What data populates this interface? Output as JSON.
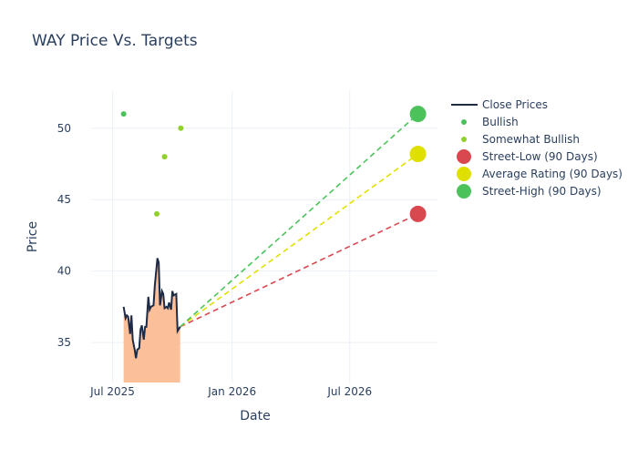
{
  "chart_data": {
    "type": "line",
    "title": "WAY Price Vs. Targets",
    "xlabel": "Date",
    "ylabel": "Price",
    "xlim": [
      "2025-05-29",
      "2026-11-13"
    ],
    "ylim": [
      32.2,
      52.6
    ],
    "grid": true,
    "legend_placement": "right",
    "x_ticks": [
      {
        "date": "2025-07-01",
        "label": "Jul 2025"
      },
      {
        "date": "2026-01-01",
        "label": "Jan 2026"
      },
      {
        "date": "2026-07-01",
        "label": "Jul 2026"
      }
    ],
    "y_ticks": [
      35,
      40,
      45,
      50
    ],
    "close_prices": {
      "name": "Close Prices",
      "color": "#1f2a44",
      "fill_color": "#fbbf9a",
      "dates": [
        "2025-07-18",
        "2025-07-21",
        "2025-07-23",
        "2025-07-25",
        "2025-07-28",
        "2025-07-30",
        "2025-08-01",
        "2025-08-04",
        "2025-08-06",
        "2025-08-08",
        "2025-08-11",
        "2025-08-13",
        "2025-08-15",
        "2025-08-18",
        "2025-08-20",
        "2025-08-22",
        "2025-08-25",
        "2025-08-27",
        "2025-08-29",
        "2025-09-02",
        "2025-09-04",
        "2025-09-08",
        "2025-09-10",
        "2025-09-12",
        "2025-09-15",
        "2025-09-17",
        "2025-09-19",
        "2025-09-22",
        "2025-09-24",
        "2025-09-26",
        "2025-09-29",
        "2025-10-01",
        "2025-10-03",
        "2025-10-07",
        "2025-10-09",
        "2025-10-13"
      ],
      "values": [
        37.5,
        36.7,
        36.9,
        36.8,
        35.6,
        36.9,
        35.2,
        34.5,
        33.9,
        34.5,
        34.6,
        35.9,
        36.2,
        35.2,
        36.1,
        36.1,
        38.2,
        37.3,
        37.5,
        37.6,
        39.0,
        40.9,
        40.6,
        37.6,
        38.6,
        38.4,
        37.4,
        37.5,
        37.4,
        37.8,
        37.3,
        38.6,
        38.3,
        38.4,
        35.8,
        36.1
      ]
    },
    "bullish": {
      "name": "Bullish",
      "color": "#4cc35a",
      "points": [
        {
          "date": "2025-07-18",
          "value": 51
        }
      ]
    },
    "somewhat_bullish": {
      "name": "Somewhat Bullish",
      "color": "#8fd12a",
      "points": [
        {
          "date": "2025-09-07",
          "value": 44
        },
        {
          "date": "2025-09-19",
          "value": 48
        },
        {
          "date": "2025-10-14",
          "value": 50
        }
      ]
    },
    "targets": [
      {
        "name": "Street-Low (90 Days)",
        "color": "#d9474f",
        "date": "2026-10-14",
        "value": 44
      },
      {
        "name": "Average Rating (90 Days)",
        "color": "#e0e000",
        "date": "2026-10-14",
        "value": 48.2
      },
      {
        "name": "Street-High (90 Days)",
        "color": "#4cc35a",
        "date": "2026-10-14",
        "value": 51
      }
    ]
  }
}
